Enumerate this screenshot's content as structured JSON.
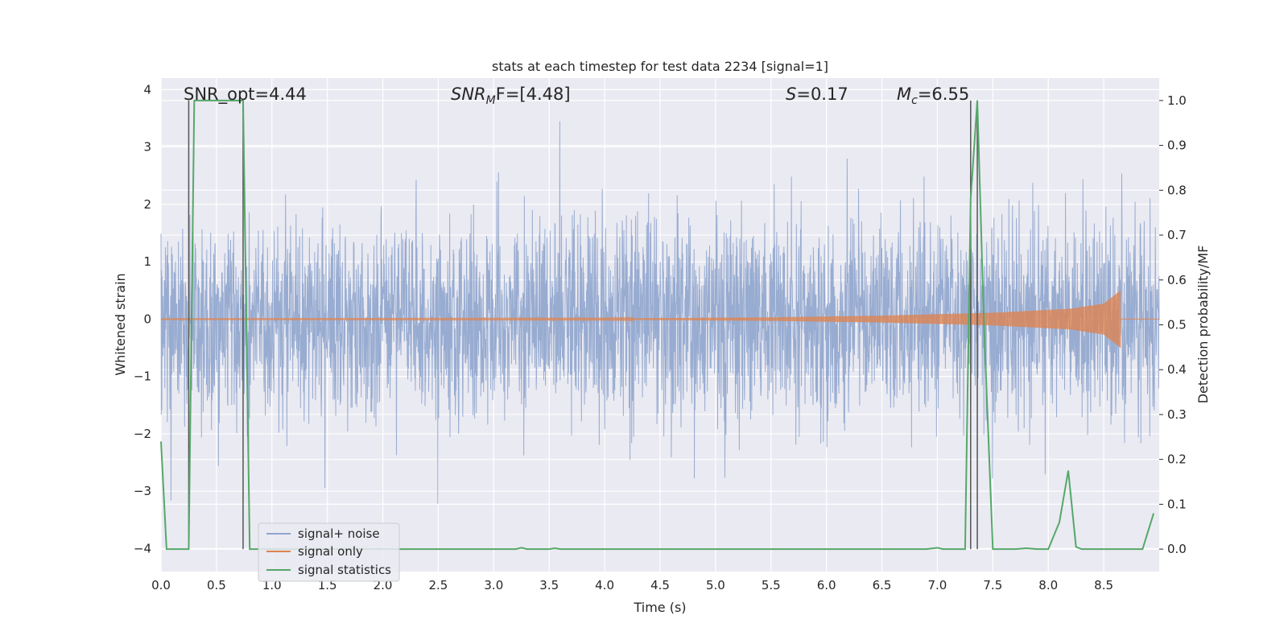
{
  "chart_data": {
    "type": "line",
    "title": "stats at each timestep for test data 2234 [signal=1]",
    "xlabel": "Time (s)",
    "ylabel_left": "Whitened strain",
    "ylabel_right": "Detection probability/MF",
    "xlim": [
      0.0,
      9.0
    ],
    "ylim_left": [
      -4.4,
      4.2
    ],
    "ylim_right": [
      -0.05,
      1.05
    ],
    "x_ticks": [
      "0.0",
      "0.5",
      "1.0",
      "1.5",
      "2.0",
      "2.5",
      "3.0",
      "3.5",
      "4.0",
      "4.5",
      "5.0",
      "5.5",
      "6.0",
      "6.5",
      "7.0",
      "7.5",
      "8.0",
      "8.5"
    ],
    "y_ticks_left": [
      "4",
      "3",
      "2",
      "1",
      "0",
      "−1",
      "−2",
      "−3",
      "−4"
    ],
    "y_ticks_right": [
      "1.0",
      "0.9",
      "0.8",
      "0.7",
      "0.6",
      "0.5",
      "0.4",
      "0.3",
      "0.2",
      "0.1",
      "0.0"
    ],
    "grid": true,
    "legend_placement": "lower-left",
    "annotations": {
      "snr_opt": "SNR_opt=4.44",
      "snr_mf_symbol": "SNR",
      "snr_mf_sub": "M",
      "snr_mf_rest": "F=[4.48]",
      "s_symbol": "S",
      "s_rest": "=0.17",
      "mc_symbol": "M",
      "mc_sub": "c",
      "mc_rest": "=6.55"
    },
    "vertical_lines_x": [
      0.25,
      0.74,
      7.3,
      7.36
    ],
    "series": [
      {
        "name": "signal+ noise",
        "color": "#8fa5cd",
        "axis": "left",
        "kind": "noise",
        "sigma": 0.85,
        "range": [
          -4.0,
          3.8
        ],
        "x_range": [
          0.0,
          9.0
        ]
      },
      {
        "name": "signal only",
        "color": "#dd8452",
        "axis": "left",
        "kind": "chirp",
        "x_range": [
          0.0,
          8.65
        ],
        "envelope": [
          {
            "x": 0.0,
            "a": 0.005
          },
          {
            "x": 4.0,
            "a": 0.01
          },
          {
            "x": 5.5,
            "a": 0.03
          },
          {
            "x": 6.5,
            "a": 0.06
          },
          {
            "x": 7.5,
            "a": 0.11
          },
          {
            "x": 8.2,
            "a": 0.18
          },
          {
            "x": 8.5,
            "a": 0.27
          },
          {
            "x": 8.62,
            "a": 0.45
          },
          {
            "x": 8.65,
            "a": 0.5
          }
        ]
      },
      {
        "name": "signal statistics",
        "color": "#55a868",
        "axis": "right",
        "x": [
          0.0,
          0.05,
          0.25,
          0.3,
          0.74,
          0.8,
          1.0,
          3.2,
          3.25,
          3.3,
          3.5,
          3.55,
          3.6,
          6.9,
          7.0,
          7.05,
          7.1,
          7.25,
          7.3,
          7.36,
          7.42,
          7.5,
          7.7,
          7.8,
          7.9,
          8.0,
          8.1,
          8.18,
          8.25,
          8.3,
          8.4,
          8.5,
          8.6,
          8.7,
          8.8,
          8.85,
          8.95
        ],
        "y": [
          0.24,
          0.0,
          0.0,
          1.0,
          1.0,
          0.0,
          0.0,
          0.0,
          0.003,
          0.0,
          0.0,
          0.002,
          0.0,
          0.0,
          0.003,
          0.0,
          0.0,
          0.0,
          0.78,
          1.0,
          0.5,
          0.0,
          0.0,
          0.002,
          0.0,
          0.0,
          0.06,
          0.175,
          0.005,
          0.0,
          0.0,
          0.0,
          0.0,
          0.0,
          0.0,
          0.0,
          0.08
        ]
      }
    ]
  }
}
